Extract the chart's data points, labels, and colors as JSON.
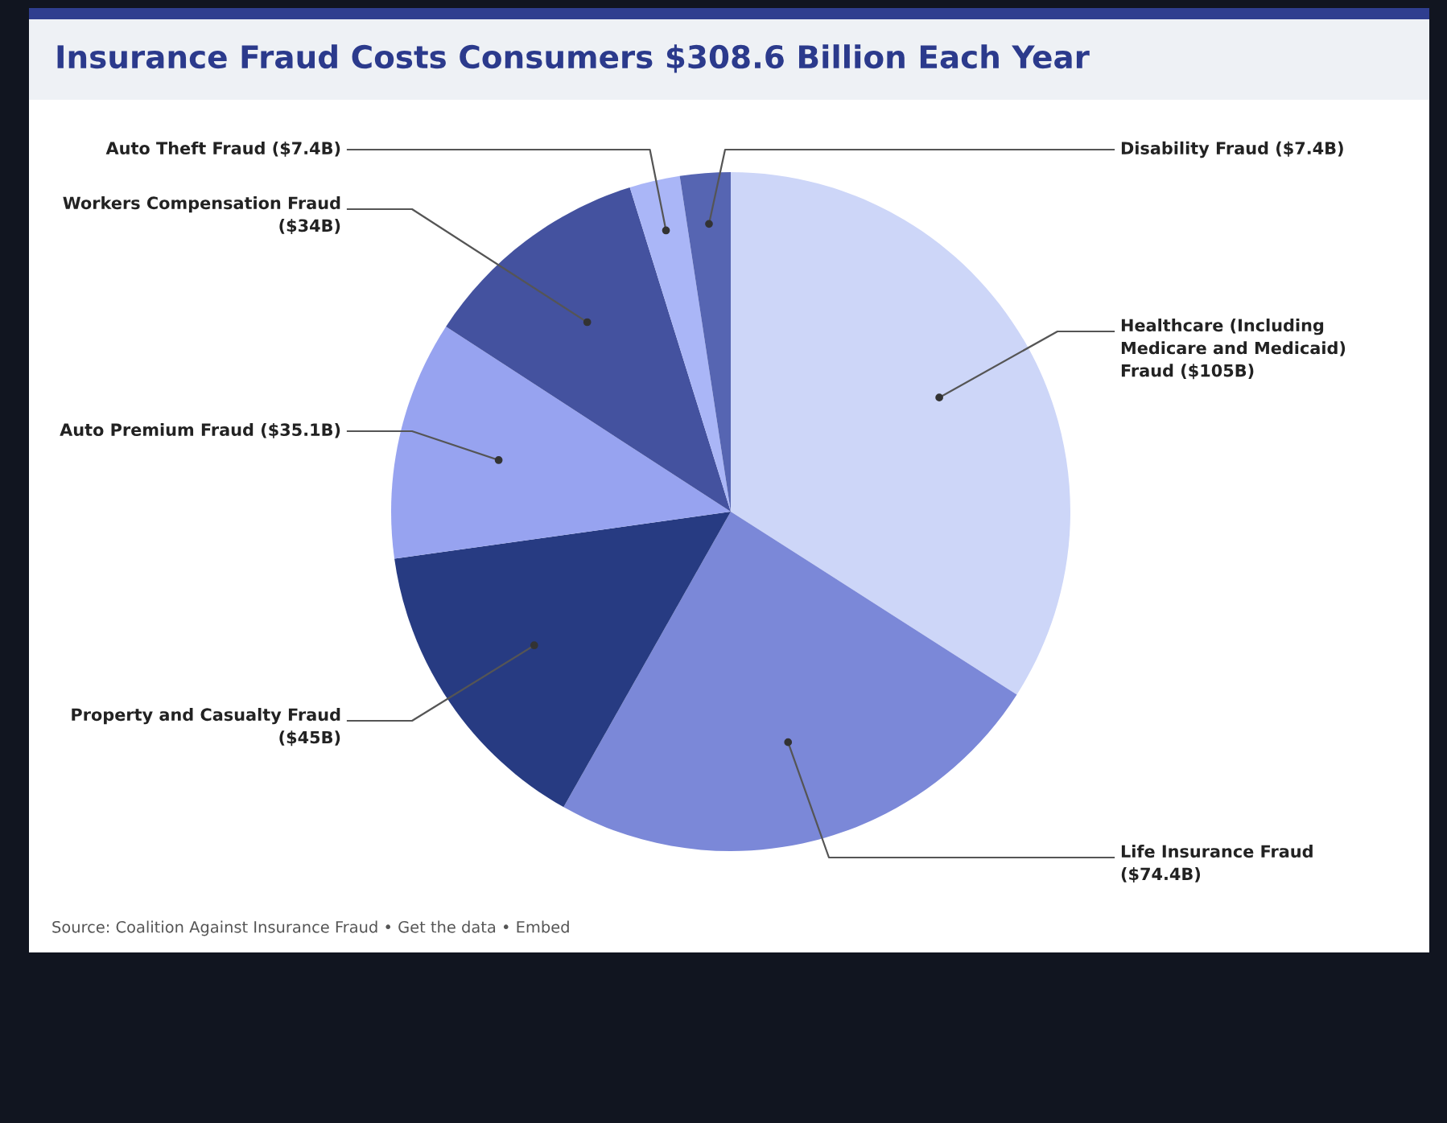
{
  "chart_data": {
    "type": "pie",
    "title": "Insurance Fraud Costs Consumers $308.6 Billion Each Year",
    "categories": [
      "Healthcare (Including Medicare and Medicaid) Fraud",
      "Life Insurance Fraud",
      "Property and Casualty Fraud",
      "Auto Premium Fraud",
      "Workers Compensation Fraud",
      "Auto Theft Fraud",
      "Disability Fraud"
    ],
    "values": [
      105,
      74.4,
      45,
      35.1,
      34,
      7.4,
      7.4
    ],
    "value_labels": [
      "($105B)",
      "($74.4B)",
      "($45B)",
      "($35.1B)",
      "($34B)",
      "($7.4B)",
      "($7.4B)"
    ],
    "colors": [
      "#cdd6f8",
      "#7b88d8",
      "#273b82",
      "#97a3f0",
      "#44529f",
      "#aab6f7",
      "#5665b2"
    ],
    "legend": false,
    "annotations": [
      "Source: Coalition Against Insurance Fraud • Get the data • Embed"
    ]
  }
}
